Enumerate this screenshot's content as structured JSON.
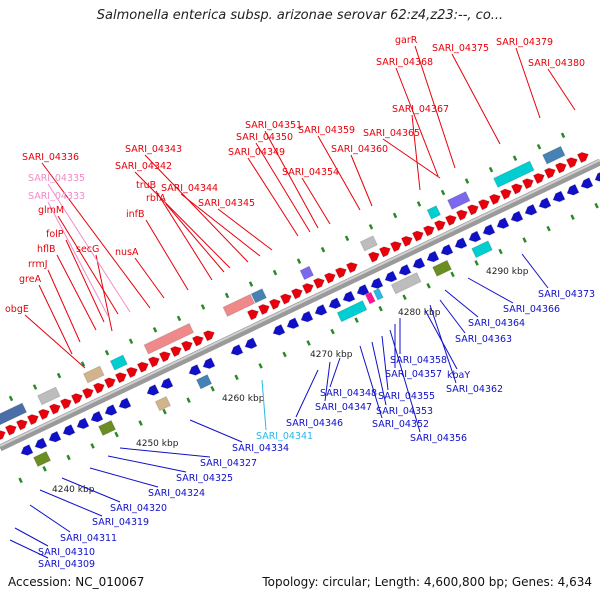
{
  "title": "Salmonella enterica subsp. arizonae serovar 62:z4,z23:--, co...",
  "footer": {
    "accession": "Accession: NC_010067",
    "topology": "Topology: circular; Length: 4,600,800 bp; Genes: 4,634"
  },
  "scale_labels": [
    "4240 kbp",
    "4250 kbp",
    "4260 kbp",
    "4270 kbp",
    "4280 kbp",
    "4290 kbp"
  ],
  "top_labels": [
    {
      "text": "obgE",
      "color": "#e8000b"
    },
    {
      "text": "greA",
      "color": "#e8000b"
    },
    {
      "text": "rrmJ",
      "color": "#e8000b"
    },
    {
      "text": "hflB",
      "color": "#e8000b"
    },
    {
      "text": "folP",
      "color": "#e8000b"
    },
    {
      "text": "glmM",
      "color": "#e8000b"
    },
    {
      "text": "secG",
      "color": "#e8000b"
    },
    {
      "text": "SARI_04333",
      "color": "#f08cc8"
    },
    {
      "text": "SARI_04335",
      "color": "#f08cc8"
    },
    {
      "text": "SARI_04336",
      "color": "#e8000b"
    },
    {
      "text": "nusA",
      "color": "#e8000b"
    },
    {
      "text": "infB",
      "color": "#e8000b"
    },
    {
      "text": "truB",
      "color": "#e8000b"
    },
    {
      "text": "rbfA",
      "color": "#e8000b"
    },
    {
      "text": "SARI_04342",
      "color": "#e8000b"
    },
    {
      "text": "SARI_04343",
      "color": "#e8000b"
    },
    {
      "text": "SARI_04344",
      "color": "#e8000b"
    },
    {
      "text": "SARI_04345",
      "color": "#e8000b"
    },
    {
      "text": "SARI_04349",
      "color": "#e8000b"
    },
    {
      "text": "SARI_04350",
      "color": "#e8000b"
    },
    {
      "text": "SARI_04351",
      "color": "#e8000b"
    },
    {
      "text": "SARI_04354",
      "color": "#e8000b"
    },
    {
      "text": "SARI_04359",
      "color": "#e8000b"
    },
    {
      "text": "SARI_04360",
      "color": "#e8000b"
    },
    {
      "text": "SARI_04365",
      "color": "#e8000b"
    },
    {
      "text": "SARI_04367",
      "color": "#e8000b"
    },
    {
      "text": "SARI_04368",
      "color": "#e8000b"
    },
    {
      "text": "garR",
      "color": "#e8000b"
    },
    {
      "text": "SARI_04375",
      "color": "#e8000b"
    },
    {
      "text": "SARI_04379",
      "color": "#e8000b"
    },
    {
      "text": "SARI_04380",
      "color": "#e8000b"
    }
  ],
  "bottom_labels": [
    {
      "text": "SARI_04309",
      "color": "#1010c8"
    },
    {
      "text": "SARI_04310",
      "color": "#1010c8"
    },
    {
      "text": "SARI_04311",
      "color": "#1010c8"
    },
    {
      "text": "SARI_04319",
      "color": "#1010c8"
    },
    {
      "text": "SARI_04320",
      "color": "#1010c8"
    },
    {
      "text": "SARI_04324",
      "color": "#1010c8"
    },
    {
      "text": "SARI_04325",
      "color": "#1010c8"
    },
    {
      "text": "SARI_04327",
      "color": "#1010c8"
    },
    {
      "text": "SARI_04334",
      "color": "#1010c8"
    },
    {
      "text": "SARI_04341",
      "color": "#2ab8e8"
    },
    {
      "text": "SARI_04346",
      "color": "#1010c8"
    },
    {
      "text": "SARI_04347",
      "color": "#1010c8"
    },
    {
      "text": "SARI_04348",
      "color": "#1010c8"
    },
    {
      "text": "SARI_04352",
      "color": "#1010c8"
    },
    {
      "text": "SARI_04353",
      "color": "#1010c8"
    },
    {
      "text": "SARI_04355",
      "color": "#1010c8"
    },
    {
      "text": "SARI_04356",
      "color": "#1010c8"
    },
    {
      "text": "SARI_04357",
      "color": "#1010c8"
    },
    {
      "text": "SARI_04358",
      "color": "#1010c8"
    },
    {
      "text": "kbaY",
      "color": "#1010c8"
    },
    {
      "text": "SARI_04362",
      "color": "#1010c8"
    },
    {
      "text": "SARI_04363",
      "color": "#1010c8"
    },
    {
      "text": "SARI_04364",
      "color": "#1010c8"
    },
    {
      "text": "SARI_04366",
      "color": "#1010c8"
    },
    {
      "text": "SARI_04373",
      "color": "#1010c8"
    }
  ]
}
